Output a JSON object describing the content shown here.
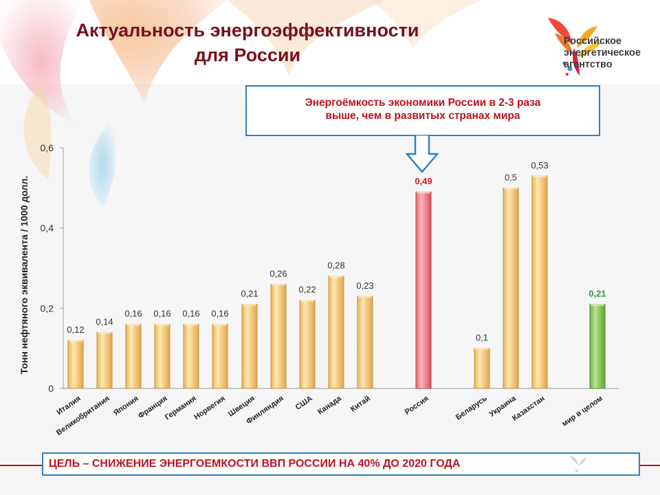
{
  "slide": {
    "title_line1": "Актуальность энергоэффективности",
    "title_line2": "для России",
    "callout_line1": "Энергоёмкость экономики России в 2-3 раза",
    "callout_line2": "выше, чем в развитых странах мира",
    "goal": "ЦЕЛЬ – СНИЖЕНИЕ ЭНЕРГОЕМКОСТИ ВВП РОССИИ НА 40% ДО 2020 ГОДА"
  },
  "logo": {
    "line1": "Российское",
    "line2": "энергетическое",
    "line3": "агентство"
  },
  "colors": {
    "title": "#7a0f1c",
    "accent_red": "#c0121d",
    "border_blue": "#2e7fc2",
    "bar_default": "#f6d48a",
    "bar_russia": "#f28f95",
    "bar_world": "#8cc84b",
    "label_russia": "#d21c24",
    "label_world": "#2e9e3a"
  },
  "chart_data": {
    "type": "bar",
    "ylabel": "Тонн нефтяного эквивалента / 1000 долл.",
    "ylim": [
      0,
      0.6
    ],
    "yticks": [
      "0",
      "0,2",
      "0,4",
      "0,6"
    ],
    "categories": [
      "Италия",
      "Великобритания",
      "Япония",
      "Франция",
      "Германия",
      "Норвегия",
      "Швеция",
      "Финляндия",
      "США",
      "Канада",
      "Китай",
      "Россия",
      "Беларусь",
      "Украина",
      "Казахстан",
      "мир в целом"
    ],
    "values": [
      0.12,
      0.14,
      0.16,
      0.16,
      0.16,
      0.16,
      0.21,
      0.26,
      0.22,
      0.28,
      0.23,
      0.49,
      0.1,
      0.5,
      0.53,
      0.21
    ],
    "value_labels": [
      "0,12",
      "0,14",
      "0,16",
      "0,16",
      "0,16",
      "0,16",
      "0,21",
      "0,26",
      "0,22",
      "0,28",
      "0,23",
      "0,49",
      "0,1",
      "0,5",
      "0,53",
      "0,21"
    ],
    "highlight": [
      "",
      "",
      "",
      "",
      "",
      "",
      "",
      "",
      "",
      "",
      "",
      "russia",
      "",
      "",
      "",
      "world"
    ],
    "grid": false,
    "legend": "none"
  }
}
